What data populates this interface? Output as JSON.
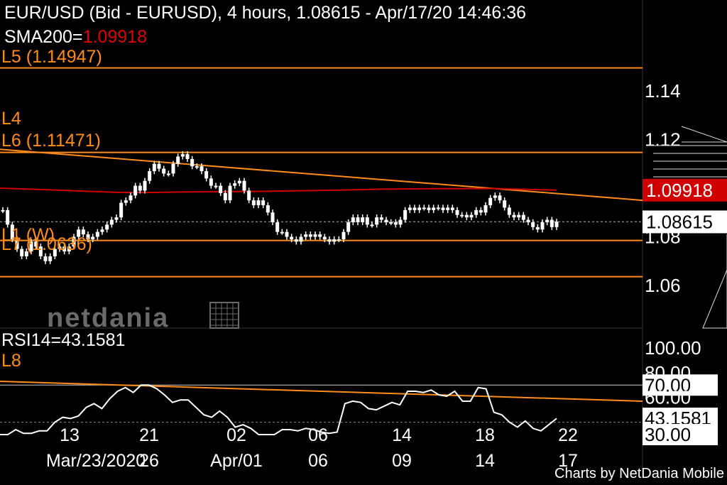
{
  "header": {
    "title": "EUR/USD (Bid - EURUSD),  4 hours, 1.08615 - Apr/17/20 14:46:36",
    "sma_label": "SMA200=",
    "sma_value": "1.09918"
  },
  "levels": {
    "L5": "L5 (1.14947)",
    "L4": "L4",
    "L6": "L6 (1.11471)",
    "L1": "L1 (W)",
    "L7": "L7 (1.0636)",
    "L8": "L8"
  },
  "watermark": "netdania",
  "rsi": {
    "label": "RSI14=43.1581"
  },
  "footer": "Charts by NetDania Mobile",
  "price_tags": {
    "sma": "1.09918",
    "last": "1.08615"
  },
  "rsi_tags": {
    "last": "43.1581"
  },
  "colors": {
    "background": "#000000",
    "orange": "#ff8c1a",
    "red": "#d00000",
    "white": "#ffffff",
    "grid": "#555555"
  },
  "chart_data": [
    {
      "type": "candlestick",
      "title": "EUR/USD (Bid - EURUSD),  4 hours, 1.08615 - Apr/17/20 14:46:36",
      "ylim": [
        1.05,
        1.155
      ],
      "yticks": [
        "1.14",
        "1.12",
        "1.08",
        "1.06"
      ],
      "x_ticks_top": [
        "13",
        "21",
        "02",
        "06",
        "14",
        "18",
        "22"
      ],
      "x_ticks_bottom": [
        "Mar/23/2020",
        "26",
        "Apr/01",
        "06",
        "09",
        "14",
        "17"
      ],
      "close": [
        1.091,
        1.085,
        1.079,
        1.075,
        1.072,
        1.074,
        1.078,
        1.076,
        1.072,
        1.07,
        1.072,
        1.075,
        1.076,
        1.074,
        1.076,
        1.08,
        1.083,
        1.081,
        1.079,
        1.08,
        1.082,
        1.083,
        1.085,
        1.087,
        1.088,
        1.094,
        1.095,
        1.097,
        1.101,
        1.099,
        1.103,
        1.107,
        1.11,
        1.108,
        1.106,
        1.106,
        1.11,
        1.113,
        1.114,
        1.112,
        1.109,
        1.109,
        1.107,
        1.104,
        1.101,
        1.101,
        1.098,
        1.095,
        1.101,
        1.102,
        1.103,
        1.099,
        1.095,
        1.093,
        1.095,
        1.093,
        1.09,
        1.086,
        1.082,
        1.082,
        1.08,
        1.079,
        1.078,
        1.08,
        1.081,
        1.08,
        1.081,
        1.08,
        1.079,
        1.078,
        1.079,
        1.079,
        1.082,
        1.086,
        1.088,
        1.086,
        1.088,
        1.085,
        1.085,
        1.088,
        1.087,
        1.086,
        1.086,
        1.085,
        1.087,
        1.091,
        1.092,
        1.091,
        1.092,
        1.092,
        1.091,
        1.092,
        1.092,
        1.091,
        1.092,
        1.091,
        1.089,
        1.089,
        1.088,
        1.089,
        1.091,
        1.09,
        1.093,
        1.096,
        1.097,
        1.095,
        1.092,
        1.089,
        1.088,
        1.089,
        1.087,
        1.086,
        1.084,
        1.083,
        1.086,
        1.087,
        1.084,
        1.0862
      ],
      "series": [
        {
          "name": "SMA200",
          "values": [
            1.1,
            1.0996,
            1.0992,
            1.0987,
            1.0983,
            1.0982,
            1.0984,
            1.0985,
            1.0986,
            1.0987,
            1.0989,
            1.0991,
            1.0993,
            1.0996,
            1.0997,
            1.0998,
            1.0998,
            1.0998,
            1.0995,
            1.0992
          ]
        }
      ],
      "price_levels": [
        {
          "label": "L5",
          "value": 1.14947
        },
        {
          "label": "L6",
          "value": 1.11471
        },
        {
          "label": "L1",
          "value": 1.0785
        },
        {
          "label": "L7",
          "value": 1.0636
        }
      ],
      "trendline_L4": [
        1.116,
        1.095
      ]
    },
    {
      "type": "line",
      "title": "RSI14=43.1581",
      "ylim": [
        30,
        100
      ],
      "yticks": [
        "100.00",
        "80.00",
        "70.00",
        "60.00",
        "43.1581",
        "30.00"
      ],
      "values": [
        30,
        30,
        34,
        31,
        31,
        33,
        33,
        40,
        44,
        43,
        45,
        52,
        55,
        51,
        59,
        65,
        68,
        64,
        70,
        70,
        67,
        62,
        56,
        58,
        58,
        52,
        46,
        44,
        49,
        44,
        36,
        38,
        35,
        30,
        30,
        30,
        34,
        34,
        33,
        35,
        34,
        32,
        31,
        32,
        55,
        57,
        56,
        51,
        50,
        53,
        56,
        54,
        65,
        65,
        64,
        66,
        62,
        61,
        65,
        57,
        57,
        68,
        67,
        48,
        46,
        40,
        36,
        41,
        35,
        33,
        38,
        43
      ],
      "reference_lines": [
        70,
        40
      ],
      "trendline_L8": [
        73,
        57
      ]
    }
  ]
}
